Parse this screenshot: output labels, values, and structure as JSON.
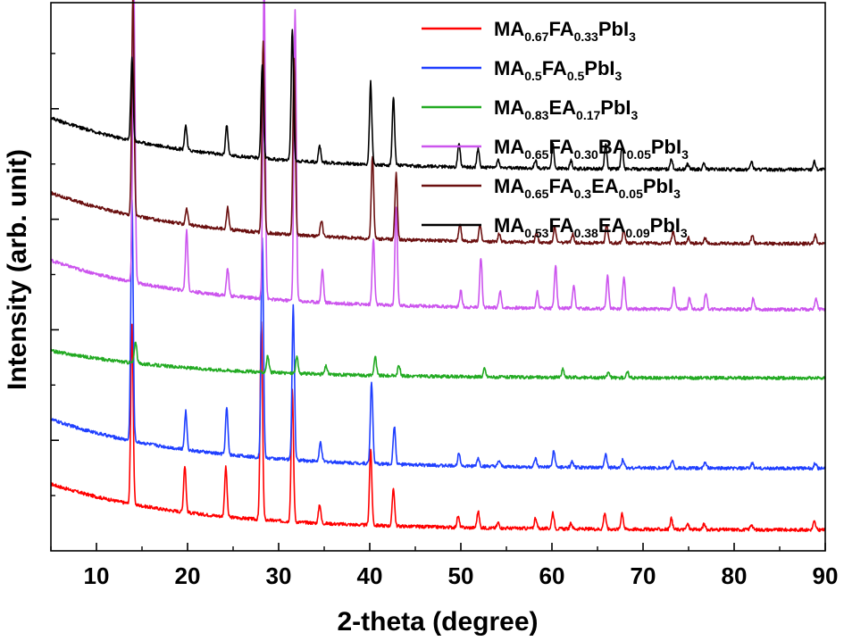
{
  "chart_data": {
    "type": "line",
    "xlabel": "2-theta (degree)",
    "ylabel": "Intensity (arb. unit)",
    "xlim": [
      5,
      90
    ],
    "x_ticks": [
      "10",
      "20",
      "30",
      "40",
      "50",
      "60",
      "70",
      "80",
      "90"
    ],
    "y_ticks_labeled": false,
    "grid": false,
    "legend_position": "top-right",
    "series": [
      {
        "name": "MA0.67FA0.33PbI3",
        "label_parts": [
          [
            "MA",
            ""
          ],
          [
            "0.67",
            "sub"
          ],
          [
            "FA",
            ""
          ],
          [
            "0.33",
            "sub"
          ],
          [
            "PbI",
            ""
          ],
          [
            "3",
            "sub"
          ]
        ],
        "color": "#ff0000",
        "baseline": [
          0.122,
          0.038
        ],
        "peaks": [
          [
            13.9,
            0.33
          ],
          [
            19.7,
            0.085
          ],
          [
            24.2,
            0.09
          ],
          [
            28.1,
            0.36
          ],
          [
            31.5,
            0.24
          ],
          [
            34.5,
            0.035
          ],
          [
            40.1,
            0.14
          ],
          [
            42.6,
            0.07
          ],
          [
            49.7,
            0.02
          ],
          [
            51.9,
            0.03
          ],
          [
            54.1,
            0.01
          ],
          [
            58.2,
            0.02
          ],
          [
            60.1,
            0.03
          ],
          [
            62.1,
            0.01
          ],
          [
            65.8,
            0.03
          ],
          [
            67.7,
            0.03
          ],
          [
            73.1,
            0.02
          ],
          [
            74.9,
            0.01
          ],
          [
            76.7,
            0.01
          ],
          [
            81.9,
            0.01
          ],
          [
            88.8,
            0.015
          ]
        ]
      },
      {
        "name": "MA0.5FA0.5PbI3",
        "label_parts": [
          [
            "MA",
            ""
          ],
          [
            "0.5",
            "sub"
          ],
          [
            "FA",
            ""
          ],
          [
            "0.5",
            "sub"
          ],
          [
            "PbI",
            ""
          ],
          [
            "3",
            "sub"
          ]
        ],
        "color": "#1f3fff",
        "baseline": [
          0.24,
          0.15
        ],
        "peaks": [
          [
            13.9,
            0.44
          ],
          [
            19.8,
            0.07
          ],
          [
            24.3,
            0.085
          ],
          [
            28.2,
            0.4
          ],
          [
            31.6,
            0.28
          ],
          [
            34.6,
            0.035
          ],
          [
            40.2,
            0.15
          ],
          [
            42.7,
            0.07
          ],
          [
            49.8,
            0.025
          ],
          [
            51.9,
            0.015
          ],
          [
            54.2,
            0.01
          ],
          [
            58.2,
            0.015
          ],
          [
            60.2,
            0.03
          ],
          [
            62.2,
            0.01
          ],
          [
            65.9,
            0.025
          ],
          [
            67.8,
            0.015
          ],
          [
            73.2,
            0.015
          ],
          [
            76.8,
            0.01
          ],
          [
            82.0,
            0.01
          ],
          [
            88.9,
            0.01
          ]
        ]
      },
      {
        "name": "MA0.83EA0.17PbI3",
        "label_parts": [
          [
            "MA",
            ""
          ],
          [
            "0.83",
            "sub"
          ],
          [
            "EA",
            ""
          ],
          [
            "0.17",
            "sub"
          ],
          [
            "PbI",
            ""
          ],
          [
            "3",
            "sub"
          ]
        ],
        "color": "#22aa22",
        "baseline": [
          0.365,
          0.315
        ],
        "peaks": [
          [
            14.3,
            0.04
          ],
          [
            28.8,
            0.03
          ],
          [
            32.0,
            0.03
          ],
          [
            35.2,
            0.015
          ],
          [
            40.6,
            0.035
          ],
          [
            43.2,
            0.02
          ],
          [
            52.6,
            0.015
          ],
          [
            61.2,
            0.015
          ],
          [
            66.2,
            0.01
          ],
          [
            68.3,
            0.01
          ]
        ]
      },
      {
        "name": "MA0.65FA0.30BA0.05PbI3",
        "label_parts": [
          [
            "MA",
            ""
          ],
          [
            "0.65",
            "sub"
          ],
          [
            "FA",
            ""
          ],
          [
            "0.30",
            "sub"
          ],
          [
            "BA",
            ""
          ],
          [
            "0.05",
            "sub"
          ],
          [
            "PbI",
            ""
          ],
          [
            "3",
            "sub"
          ]
        ],
        "color": "#cc55ee",
        "baseline": [
          0.53,
          0.44
        ],
        "peaks": [
          [
            14.1,
            0.55
          ],
          [
            19.9,
            0.11
          ],
          [
            24.4,
            0.05
          ],
          [
            28.4,
            0.58
          ],
          [
            31.8,
            0.53
          ],
          [
            34.8,
            0.06
          ],
          [
            40.4,
            0.12
          ],
          [
            42.9,
            0.18
          ],
          [
            50.0,
            0.03
          ],
          [
            52.2,
            0.09
          ],
          [
            54.3,
            0.03
          ],
          [
            58.4,
            0.03
          ],
          [
            60.4,
            0.08
          ],
          [
            62.4,
            0.04
          ],
          [
            66.1,
            0.06
          ],
          [
            67.9,
            0.06
          ],
          [
            73.4,
            0.04
          ],
          [
            75.1,
            0.02
          ],
          [
            76.9,
            0.03
          ],
          [
            82.1,
            0.02
          ],
          [
            89.0,
            0.02
          ]
        ]
      },
      {
        "name": "MA0.65FA0.3EA0.05PbI3",
        "label_parts": [
          [
            "MA",
            ""
          ],
          [
            "0.65",
            "sub"
          ],
          [
            "FA",
            ""
          ],
          [
            "0.3",
            "sub"
          ],
          [
            "EA",
            ""
          ],
          [
            "0.05",
            "sub"
          ],
          [
            "PbI",
            ""
          ],
          [
            "3",
            "sub"
          ]
        ],
        "color": "#6b1010",
        "baseline": [
          0.653,
          0.56
        ],
        "peaks": [
          [
            14.0,
            0.4
          ],
          [
            19.9,
            0.03
          ],
          [
            24.4,
            0.04
          ],
          [
            28.3,
            0.35
          ],
          [
            31.7,
            0.32
          ],
          [
            34.7,
            0.03
          ],
          [
            40.3,
            0.15
          ],
          [
            42.9,
            0.12
          ],
          [
            49.9,
            0.03
          ],
          [
            52.1,
            0.03
          ],
          [
            54.2,
            0.015
          ],
          [
            58.3,
            0.02
          ],
          [
            60.3,
            0.03
          ],
          [
            62.3,
            0.015
          ],
          [
            66.0,
            0.035
          ],
          [
            67.9,
            0.025
          ],
          [
            73.3,
            0.02
          ],
          [
            75.0,
            0.01
          ],
          [
            76.8,
            0.01
          ],
          [
            82.0,
            0.015
          ],
          [
            88.9,
            0.015
          ]
        ]
      },
      {
        "name": "MA0.53FA0.38EA0.09PbI3",
        "label_parts": [
          [
            "MA",
            ""
          ],
          [
            "0.53",
            "sub"
          ],
          [
            "FA",
            ""
          ],
          [
            "0.38",
            "sub"
          ],
          [
            "EA",
            ""
          ],
          [
            "0.09",
            "sub"
          ],
          [
            "PbI",
            ""
          ],
          [
            "3",
            "sub"
          ]
        ],
        "color": "#000000",
        "baseline": [
          0.79,
          0.695
        ],
        "peaks": [
          [
            13.9,
            0.15
          ],
          [
            19.8,
            0.045
          ],
          [
            24.3,
            0.055
          ],
          [
            28.2,
            0.17
          ],
          [
            31.5,
            0.24
          ],
          [
            34.5,
            0.03
          ],
          [
            40.1,
            0.15
          ],
          [
            42.6,
            0.125
          ],
          [
            49.8,
            0.045
          ],
          [
            51.9,
            0.035
          ],
          [
            54.1,
            0.015
          ],
          [
            58.2,
            0.015
          ],
          [
            60.1,
            0.045
          ],
          [
            62.1,
            0.015
          ],
          [
            65.9,
            0.045
          ],
          [
            67.7,
            0.04
          ],
          [
            73.1,
            0.02
          ],
          [
            74.9,
            0.01
          ],
          [
            76.7,
            0.01
          ],
          [
            81.9,
            0.015
          ],
          [
            88.8,
            0.015
          ]
        ]
      }
    ]
  }
}
